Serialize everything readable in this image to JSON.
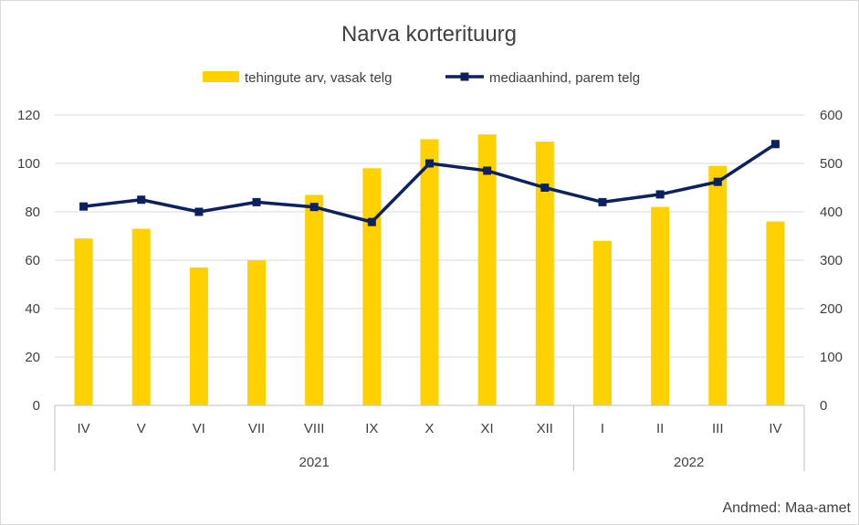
{
  "chart_data": {
    "type": "bar",
    "title": "Narva korterituurg",
    "categories": [
      "IV",
      "V",
      "VI",
      "VII",
      "VIII",
      "IX",
      "X",
      "XI",
      "XII",
      "I",
      "II",
      "III",
      "IV"
    ],
    "groups": [
      {
        "label": "2021",
        "start": 0,
        "end": 8
      },
      {
        "label": "2022",
        "start": 9,
        "end": 12
      }
    ],
    "series": [
      {
        "name": "tehingute arv, vasak telg",
        "type": "bar",
        "axis": "left",
        "color": "#FFD100",
        "values": [
          69,
          73,
          57,
          60,
          87,
          98,
          110,
          112,
          109,
          68,
          82,
          99,
          76
        ]
      },
      {
        "name": "mediaanhind, parem telg",
        "type": "line",
        "axis": "right",
        "color": "#0B2160",
        "values": [
          411,
          425,
          400,
          420,
          410,
          379,
          500,
          485,
          450,
          420,
          436,
          462,
          540
        ]
      }
    ],
    "y_left": {
      "min": 0,
      "max": 120,
      "ticks": [
        0,
        20,
        40,
        60,
        80,
        100,
        120
      ]
    },
    "y_right": {
      "min": 0,
      "max": 600,
      "ticks": [
        0,
        100,
        200,
        300,
        400,
        500,
        600
      ]
    },
    "grid": true,
    "legend_position": "top",
    "source": "Andmed: Maa-amet"
  }
}
